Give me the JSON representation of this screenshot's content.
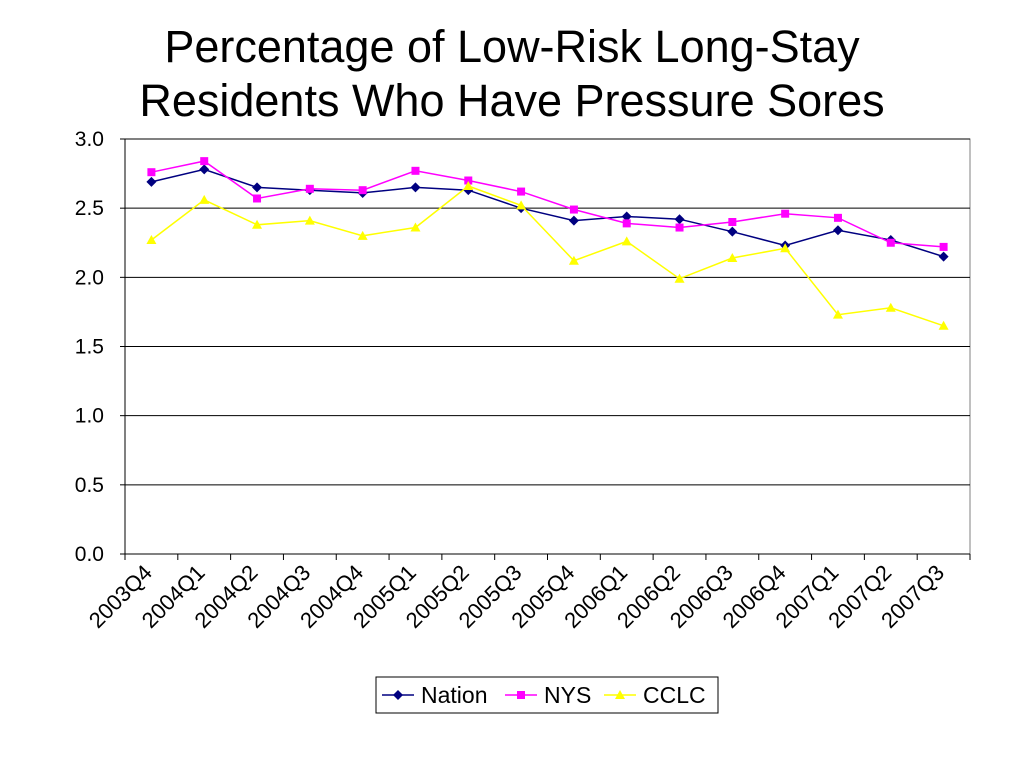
{
  "chart_data": {
    "type": "line",
    "title": "Percentage of Low-Risk Long-Stay Residents Who Have Pressure Sores",
    "categories": [
      "2003Q4",
      "2004Q1",
      "2004Q2",
      "2004Q3",
      "2004Q4",
      "2005Q1",
      "2005Q2",
      "2005Q3",
      "2005Q4",
      "2006Q1",
      "2006Q2",
      "2006Q3",
      "2006Q4",
      "2007Q1",
      "2007Q2",
      "2007Q3"
    ],
    "series": [
      {
        "name": "Nation",
        "color": "#000080",
        "marker": "diamond",
        "values": [
          2.69,
          2.78,
          2.65,
          2.63,
          2.61,
          2.65,
          2.63,
          2.5,
          2.41,
          2.44,
          2.42,
          2.33,
          2.23,
          2.34,
          2.27,
          2.15
        ]
      },
      {
        "name": "NYS",
        "color": "#FF00FF",
        "marker": "square",
        "values": [
          2.76,
          2.84,
          2.57,
          2.64,
          2.63,
          2.77,
          2.7,
          2.62,
          2.49,
          2.39,
          2.36,
          2.4,
          2.46,
          2.43,
          2.25,
          2.22
        ]
      },
      {
        "name": "CCLC",
        "color": "#FFFF00",
        "marker": "triangle",
        "values": [
          2.27,
          2.56,
          2.38,
          2.41,
          2.3,
          2.36,
          2.66,
          2.52,
          2.12,
          2.26,
          1.99,
          2.14,
          2.21,
          1.73,
          1.78,
          1.65
        ]
      }
    ],
    "ylim": [
      0,
      3.0
    ],
    "yticks": [
      "0.0",
      "0.5",
      "1.0",
      "1.5",
      "2.0",
      "2.5",
      "3.0"
    ],
    "grid": true,
    "legend": "bottom"
  }
}
